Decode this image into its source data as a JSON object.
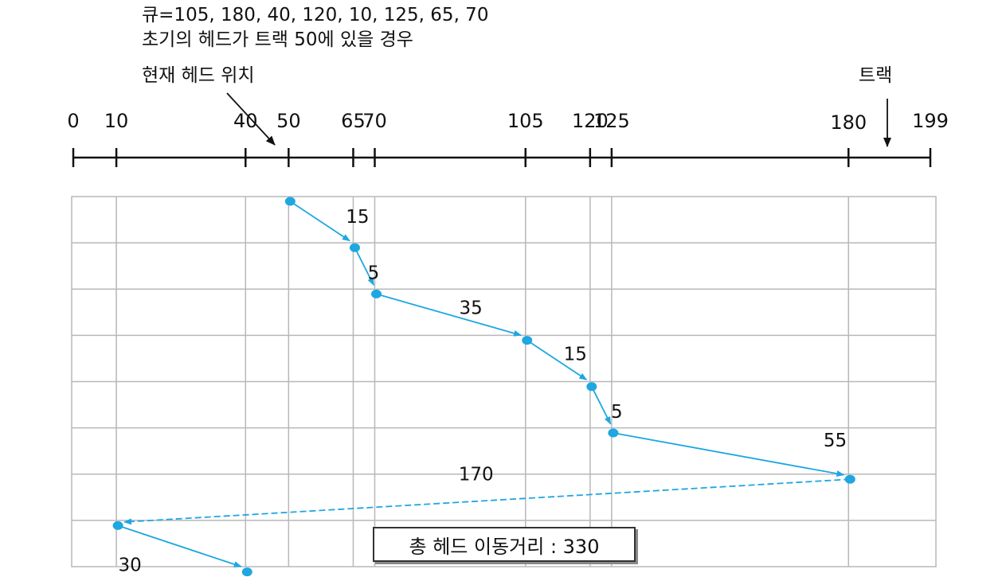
{
  "header": {
    "queue_line": "큐=105, 180, 40, 120, 10, 125, 65, 70",
    "initial_line": "초기의 헤드가 트랙 50에 있을 경우",
    "current_head_label": "현재 헤드 위치",
    "track_label": "트랙"
  },
  "axis": {
    "min": 0,
    "max": 199,
    "ticks": [
      "0",
      "10",
      "40",
      "50",
      "65",
      "70",
      "105",
      "120",
      "125",
      "180",
      "199"
    ]
  },
  "schedule": {
    "order": [
      50,
      65,
      70,
      105,
      120,
      125,
      180,
      10,
      40
    ],
    "segments": [
      {
        "from": 50,
        "to": 65,
        "distance": "15",
        "style": "solid"
      },
      {
        "from": 65,
        "to": 70,
        "distance": "5",
        "style": "solid"
      },
      {
        "from": 70,
        "to": 105,
        "distance": "35",
        "style": "solid"
      },
      {
        "from": 105,
        "to": 120,
        "distance": "15",
        "style": "solid"
      },
      {
        "from": 120,
        "to": 125,
        "distance": "5",
        "style": "solid"
      },
      {
        "from": 125,
        "to": 180,
        "distance": "55",
        "style": "solid"
      },
      {
        "from": 180,
        "to": 10,
        "distance": "170",
        "style": "dashed"
      },
      {
        "from": 10,
        "to": 40,
        "distance": "30",
        "style": "solid"
      }
    ]
  },
  "total": "총 헤드 이동거리 : 330",
  "colors": {
    "path": "#1ea7e1",
    "grid": "#b8b8b8",
    "axis": "#111111"
  }
}
